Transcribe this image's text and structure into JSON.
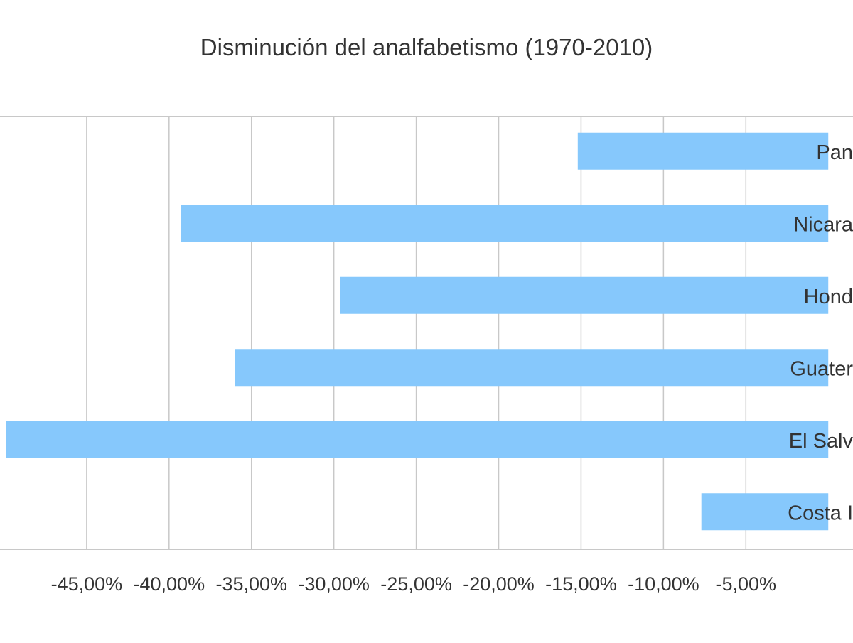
{
  "chart_data": {
    "type": "bar",
    "orientation": "horizontal",
    "title": "Disminución del analfabetismo (1970-2010)",
    "xlabel": "",
    "ylabel": "",
    "categories": [
      "Panamá",
      "Nicaragua",
      "Honduras",
      "Guatemala",
      "El Salvador",
      "Costa Rica"
    ],
    "category_labels_visible": [
      "Pan",
      "Nicara",
      "Hond",
      "Guater",
      "El Salv",
      "Costa I"
    ],
    "values": [
      -15.2,
      -39.3,
      -29.6,
      -36.0,
      -49.9,
      -7.7
    ],
    "x_ticks": [
      -45,
      -40,
      -35,
      -30,
      -25,
      -20,
      -15,
      -10,
      -5
    ],
    "x_tick_labels": [
      "-45,00%",
      "-40,00%",
      "-35,00%",
      "-30,00%",
      "-25,00%",
      "-20,00%",
      "-15,00%",
      "-10,00%",
      "-5,00%"
    ],
    "xlim": [
      -50.3,
      1.5
    ],
    "grid": true,
    "legend": "none",
    "bar_color": "#86c8fc",
    "grid_color": "#c8c8c8",
    "text_color": "#333333"
  }
}
